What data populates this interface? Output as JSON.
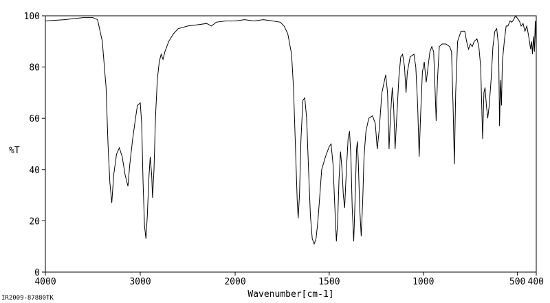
{
  "chart_data": {
    "type": "line",
    "title": "",
    "xlabel": "Wavenumber[cm-1]",
    "ylabel": "%T",
    "xlim": [
      4000,
      400
    ],
    "ylim": [
      0,
      100
    ],
    "x_ticks": [
      4000,
      3000,
      2000,
      1500,
      1000,
      500,
      400
    ],
    "x_tick_labels": [
      "4000",
      "3000",
      "2000",
      "1500",
      "1000",
      "500",
      "400"
    ],
    "y_ticks": [
      0,
      20,
      40,
      60,
      80,
      100
    ],
    "y_tick_labels": [
      "0",
      "20",
      "40",
      "60",
      "80",
      "100"
    ],
    "grid": false,
    "line_color": "#000000",
    "series": [
      {
        "points": [
          [
            4000,
            98.0
          ],
          [
            3800,
            98.5
          ],
          [
            3600,
            99.3
          ],
          [
            3500,
            99.3
          ],
          [
            3450,
            98.5
          ],
          [
            3400,
            90.0
          ],
          [
            3360,
            72.0
          ],
          [
            3340,
            50.0
          ],
          [
            3320,
            35.0
          ],
          [
            3300,
            27.0
          ],
          [
            3280,
            38.0
          ],
          [
            3250,
            46.0
          ],
          [
            3220,
            48.5
          ],
          [
            3190,
            45.0
          ],
          [
            3160,
            38.0
          ],
          [
            3130,
            33.5
          ],
          [
            3110,
            42.0
          ],
          [
            3080,
            52.0
          ],
          [
            3050,
            60.0
          ],
          [
            3030,
            65.0
          ],
          [
            3000,
            66.0
          ],
          [
            2985,
            58.0
          ],
          [
            2970,
            35.0
          ],
          [
            2955,
            18.0
          ],
          [
            2940,
            13.0
          ],
          [
            2925,
            22.0
          ],
          [
            2910,
            36.0
          ],
          [
            2895,
            45.0
          ],
          [
            2880,
            38.0
          ],
          [
            2870,
            29.0
          ],
          [
            2855,
            40.0
          ],
          [
            2840,
            60.0
          ],
          [
            2820,
            75.0
          ],
          [
            2800,
            82.0
          ],
          [
            2780,
            85.0
          ],
          [
            2760,
            83.0
          ],
          [
            2740,
            86.0
          ],
          [
            2700,
            90.0
          ],
          [
            2650,
            93.0
          ],
          [
            2600,
            95.0
          ],
          [
            2500,
            96.0
          ],
          [
            2400,
            96.5
          ],
          [
            2300,
            97.0
          ],
          [
            2250,
            96.0
          ],
          [
            2200,
            97.5
          ],
          [
            2100,
            98.0
          ],
          [
            2000,
            98.0
          ],
          [
            1950,
            98.5
          ],
          [
            1900,
            98.0
          ],
          [
            1850,
            98.5
          ],
          [
            1800,
            98.0
          ],
          [
            1760,
            97.5
          ],
          [
            1740,
            96.0
          ],
          [
            1720,
            93.0
          ],
          [
            1700,
            85.0
          ],
          [
            1690,
            72.0
          ],
          [
            1680,
            50.0
          ],
          [
            1670,
            28.0
          ],
          [
            1665,
            21.0
          ],
          [
            1658,
            30.0
          ],
          [
            1650,
            52.0
          ],
          [
            1640,
            67.0
          ],
          [
            1630,
            68.0
          ],
          [
            1620,
            60.0
          ],
          [
            1610,
            40.0
          ],
          [
            1600,
            22.0
          ],
          [
            1590,
            13.0
          ],
          [
            1580,
            11.0
          ],
          [
            1570,
            13.0
          ],
          [
            1560,
            20.0
          ],
          [
            1550,
            30.0
          ],
          [
            1540,
            40.0
          ],
          [
            1520,
            45.0
          ],
          [
            1500,
            49.0
          ],
          [
            1490,
            50.0
          ],
          [
            1480,
            42.0
          ],
          [
            1470,
            25.0
          ],
          [
            1462,
            12.0
          ],
          [
            1455,
            20.0
          ],
          [
            1448,
            36.0
          ],
          [
            1440,
            47.0
          ],
          [
            1432,
            40.0
          ],
          [
            1425,
            30.0
          ],
          [
            1418,
            25.0
          ],
          [
            1410,
            38.0
          ],
          [
            1400,
            52.0
          ],
          [
            1392,
            55.0
          ],
          [
            1385,
            45.0
          ],
          [
            1378,
            25.0
          ],
          [
            1370,
            12.0
          ],
          [
            1362,
            30.0
          ],
          [
            1355,
            48.0
          ],
          [
            1350,
            51.0
          ],
          [
            1345,
            42.0
          ],
          [
            1338,
            25.0
          ],
          [
            1330,
            14.0
          ],
          [
            1322,
            28.0
          ],
          [
            1315,
            45.0
          ],
          [
            1305,
            55.0
          ],
          [
            1290,
            60.0
          ],
          [
            1270,
            61.0
          ],
          [
            1255,
            58.0
          ],
          [
            1245,
            48.0
          ],
          [
            1235,
            55.0
          ],
          [
            1220,
            70.0
          ],
          [
            1200,
            77.0
          ],
          [
            1190,
            70.0
          ],
          [
            1182,
            48.0
          ],
          [
            1175,
            60.0
          ],
          [
            1165,
            72.0
          ],
          [
            1158,
            65.0
          ],
          [
            1150,
            48.0
          ],
          [
            1140,
            62.0
          ],
          [
            1130,
            76.0
          ],
          [
            1120,
            84.0
          ],
          [
            1110,
            85.0
          ],
          [
            1100,
            80.0
          ],
          [
            1092,
            70.0
          ],
          [
            1085,
            78.0
          ],
          [
            1070,
            84.0
          ],
          [
            1050,
            85.0
          ],
          [
            1040,
            80.0
          ],
          [
            1030,
            65.0
          ],
          [
            1022,
            45.0
          ],
          [
            1015,
            60.0
          ],
          [
            1005,
            78.0
          ],
          [
            995,
            82.0
          ],
          [
            985,
            74.0
          ],
          [
            975,
            80.0
          ],
          [
            965,
            86.0
          ],
          [
            955,
            88.0
          ],
          [
            945,
            86.0
          ],
          [
            938,
            72.0
          ],
          [
            932,
            59.0
          ],
          [
            925,
            75.0
          ],
          [
            915,
            88.0
          ],
          [
            900,
            89.0
          ],
          [
            880,
            89.0
          ],
          [
            860,
            88.0
          ],
          [
            850,
            86.0
          ],
          [
            842,
            65.0
          ],
          [
            835,
            42.0
          ],
          [
            828,
            70.0
          ],
          [
            818,
            90.0
          ],
          [
            800,
            94.0
          ],
          [
            780,
            94.0
          ],
          [
            770,
            90.0
          ],
          [
            760,
            87.0
          ],
          [
            750,
            89.0
          ],
          [
            740,
            88.0
          ],
          [
            730,
            90.0
          ],
          [
            715,
            91.0
          ],
          [
            705,
            88.0
          ],
          [
            695,
            80.0
          ],
          [
            685,
            52.0
          ],
          [
            678,
            70.0
          ],
          [
            672,
            72.0
          ],
          [
            665,
            65.0
          ],
          [
            658,
            60.0
          ],
          [
            650,
            65.0
          ],
          [
            640,
            75.0
          ],
          [
            630,
            88.0
          ],
          [
            620,
            94.0
          ],
          [
            610,
            95.0
          ],
          [
            600,
            88.0
          ],
          [
            595,
            57.0
          ],
          [
            590,
            75.0
          ],
          [
            585,
            65.0
          ],
          [
            580,
            82.0
          ],
          [
            570,
            90.0
          ],
          [
            560,
            96.0
          ],
          [
            550,
            96.0
          ],
          [
            540,
            98.0
          ],
          [
            530,
            97.5
          ],
          [
            520,
            98.5
          ],
          [
            510,
            100.0
          ],
          [
            500,
            99.0
          ],
          [
            490,
            98.0
          ],
          [
            480,
            96.0
          ],
          [
            470,
            97.0
          ],
          [
            460,
            94.0
          ],
          [
            450,
            96.0
          ],
          [
            440,
            92.0
          ],
          [
            430,
            87.0
          ],
          [
            425,
            90.0
          ],
          [
            420,
            85.0
          ],
          [
            415,
            92.0
          ],
          [
            410,
            86.0
          ],
          [
            405,
            98.0
          ],
          [
            400,
            87.0
          ]
        ]
      }
    ]
  },
  "footer": {
    "spectrum_id": "IR2009-87880TK"
  }
}
